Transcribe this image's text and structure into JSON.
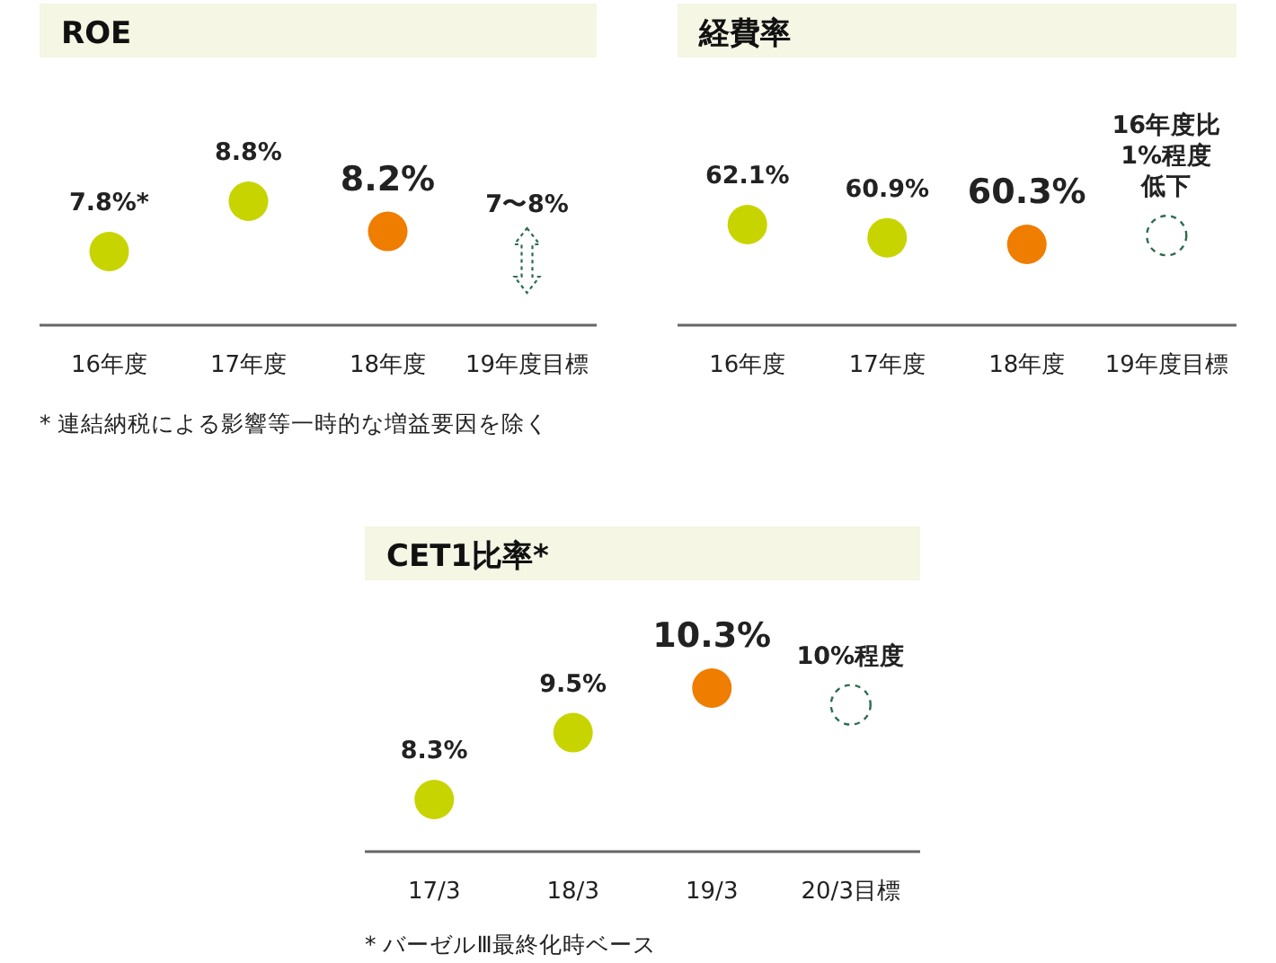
{
  "chart_data": [
    {
      "type": "scatter",
      "title": "ROE",
      "categories": [
        "16年度",
        "17年度",
        "18年度",
        "19年度目標"
      ],
      "tick_labels": "x",
      "series": [
        {
          "color": "#c8d400",
          "colors": [
            "#c8d400",
            "#c8d400",
            "#ef7d00",
            null
          ],
          "values": [
            7.8,
            8.8,
            8.2,
            null
          ],
          "value_labels": [
            "7.8%*",
            "8.8%",
            "8.2%",
            null
          ]
        }
      ],
      "annotations": [
        "7〜8%",
        "* 連結納税による影響等一時的な増益要因を除く"
      ]
    },
    {
      "type": "scatter",
      "title": "経費率",
      "categories": [
        "16年度",
        "17年度",
        "18年度",
        "19年度目標"
      ],
      "tick_labels": "x",
      "series": [
        {
          "color": "#c8d400",
          "colors": [
            "#c8d400",
            "#c8d400",
            "#ef7d00",
            null
          ],
          "values": [
            62.1,
            60.9,
            60.3,
            null
          ],
          "value_labels": [
            "62.1%",
            "60.9%",
            "60.3%",
            null
          ]
        },
        {
          "color": "#2e6b4f",
          "values": [
            null,
            null,
            null,
            61.1
          ],
          "value_labels": [
            null,
            null,
            null,
            "16年度比1%程度低下"
          ],
          "marker": "circle",
          "line_style": "dashed"
        }
      ]
    },
    {
      "type": "scatter",
      "title": "CET1比率*",
      "categories": [
        "17/3",
        "18/3",
        "19/3",
        "20/3目標"
      ],
      "tick_labels": "x",
      "series": [
        {
          "color": "#c8d400",
          "colors": [
            "#c8d400",
            "#c8d400",
            "#ef7d00",
            null
          ],
          "values": [
            8.3,
            9.5,
            10.3,
            null
          ],
          "value_labels": [
            "8.3%",
            "9.5%",
            "10.3%",
            null
          ]
        },
        {
          "color": "#2e6b4f",
          "values": [
            null,
            null,
            null,
            10
          ],
          "value_labels": [
            null,
            null,
            null,
            "10%程度"
          ],
          "marker": "circle",
          "line_style": "dashed"
        }
      ],
      "annotations": [
        "* バーゼルⅢ最終化時ベース"
      ]
    }
  ]
}
